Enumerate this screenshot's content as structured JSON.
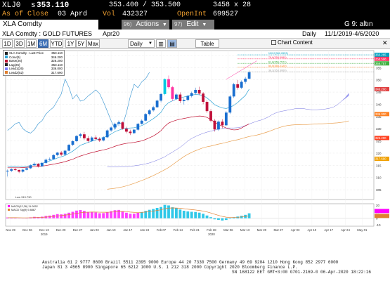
{
  "quote": {
    "ticker": "XLJ0",
    "price_prefix": "s",
    "price": "353.110",
    "bid_ask": "353.400 / 353.500",
    "size": "3458 x 28",
    "as_of_label": "As of Close",
    "date": "03 Aprd",
    "vol_label": "Vol",
    "vol": "432327",
    "openint_label": "OpenInt",
    "openint": "699527"
  },
  "menubar": {
    "security": "XLA Comdty",
    "actions_num": "96)",
    "actions_label": "Actions",
    "edit_num": "97)",
    "edit_label": "Edit",
    "page_indicator": "G 9: altın"
  },
  "window": {
    "title": "XLA Comdty : GOLD FUTURES",
    "contract": "Apr20",
    "frequency": "Daily",
    "date_range": "11/1/2019-4/6/2020"
  },
  "toolbar": {
    "periods": [
      "1D",
      "3D",
      "1M",
      "6M",
      "YTD",
      "1Y",
      "5Y",
      "Max"
    ],
    "selected_period": "6M",
    "frequency": "Daily",
    "table_label": "Table",
    "chart_content_label": "Chart Content"
  },
  "legend": [
    {
      "label": "XLA Comdty - Last Price",
      "value": "353.110",
      "color": "#222222"
    },
    {
      "label": "Conv(9)",
      "value": "346.200",
      "color": "#2fa4d6"
    },
    {
      "label": "Base(26)",
      "value": "326.200",
      "color": "#c01030"
    },
    {
      "label": "Lag(26)",
      "value": "353.110",
      "color": "#222222"
    },
    {
      "label": "Lead1(26)",
      "value": "336.000",
      "color": "#8080ff"
    },
    {
      "label": "Lead2(52)",
      "value": "317.690",
      "color": "#e08030"
    }
  ],
  "fib_labels": [
    "100.0(360.2653)",
    "78.6(358.5980)",
    "61.8(356.7571)",
    "50.0(355.2120)",
    "38.2(353.3060)"
  ],
  "price_labels": [
    {
      "value": "360.265",
      "color": "#00a0c0"
    },
    {
      "value": "358.598",
      "color": "#ff3060"
    },
    {
      "value": "356.757",
      "color": "#40b040"
    },
    {
      "value": "346.200",
      "color": "#e04040"
    },
    {
      "value": "336.000",
      "color": "#ff8020"
    },
    {
      "value": "326.200",
      "color": "#ff4020"
    },
    {
      "value": "317.690",
      "color": "#f0a000"
    }
  ],
  "low_label": "Low 313.730",
  "macd_legend": [
    {
      "label": "MACD(12,26) 11.0052",
      "color": "#ff00ff"
    },
    {
      "label": "MACD Sig(9) 9.8867",
      "color": "#e08030"
    }
  ],
  "chart_data": {
    "type": "candlestick",
    "y_ticks": [
      "360",
      "355",
      "350",
      "345",
      "340",
      "335",
      "330",
      "325",
      "320",
      "315",
      "310",
      "305"
    ],
    "x_labels": [
      "Nov 29",
      "Dec 06",
      "Dec 13",
      "Dec 20",
      "Dec 27",
      "Jan 03",
      "Jan 10",
      "Jan 17",
      "Jan 24",
      "Feb 07",
      "Feb 14",
      "Feb 21",
      "Feb 28",
      "Mar 06",
      "Mar 13",
      "Mar 20",
      "Mar 27",
      "Apr 03",
      "Apr 10",
      "Apr 17",
      "Apr 24",
      "May 01"
    ],
    "year_labels": [
      "2019",
      "2020"
    ],
    "macd_ticks": [
      "20",
      "10",
      "0",
      "-10"
    ],
    "candles": [
      [
        312.5,
        313.3,
        310.4,
        312.8
      ],
      [
        312.8,
        313.8,
        312.2,
        313.4
      ],
      [
        313.4,
        314.0,
        312.7,
        313.1
      ],
      [
        313.1,
        313.3,
        311.8,
        312.4
      ],
      [
        312.4,
        313.6,
        312.0,
        313.2
      ],
      [
        313.2,
        314.2,
        312.9,
        313.8
      ],
      [
        313.8,
        315.4,
        313.5,
        315.0
      ],
      [
        315.0,
        316.2,
        314.8,
        315.6
      ],
      [
        315.6,
        315.9,
        314.1,
        314.6
      ],
      [
        314.6,
        316.4,
        314.3,
        316.0
      ],
      [
        316.0,
        317.8,
        315.6,
        317.3
      ],
      [
        317.3,
        318.2,
        316.9,
        317.6
      ],
      [
        317.6,
        319.6,
        317.3,
        319.2
      ],
      [
        319.2,
        320.5,
        318.7,
        320.2
      ],
      [
        320.2,
        320.9,
        318.8,
        319.4
      ],
      [
        319.4,
        321.3,
        319.0,
        321.0
      ],
      [
        321.0,
        323.8,
        320.7,
        323.4
      ],
      [
        323.4,
        325.3,
        322.9,
        324.9
      ],
      [
        324.9,
        327.4,
        324.5,
        327.0
      ],
      [
        327.0,
        328.3,
        326.2,
        327.7
      ],
      [
        327.7,
        328.7,
        325.4,
        326.1
      ],
      [
        326.1,
        327.0,
        324.4,
        325.0
      ],
      [
        325.0,
        326.9,
        324.7,
        326.4
      ],
      [
        326.4,
        327.3,
        325.3,
        325.8
      ],
      [
        325.8,
        326.5,
        324.6,
        325.2
      ],
      [
        325.2,
        326.9,
        324.8,
        326.5
      ],
      [
        326.5,
        329.7,
        326.2,
        329.3
      ],
      [
        329.3,
        331.0,
        328.7,
        330.5
      ],
      [
        330.5,
        332.5,
        329.9,
        332.0
      ],
      [
        332.0,
        333.4,
        331.1,
        332.6
      ],
      [
        332.6,
        333.0,
        329.6,
        330.0
      ],
      [
        330.0,
        330.8,
        328.1,
        328.8
      ],
      [
        328.8,
        329.6,
        327.4,
        328.2
      ],
      [
        328.2,
        330.0,
        327.8,
        329.6
      ],
      [
        329.6,
        332.4,
        329.2,
        332.0
      ],
      [
        332.0,
        333.8,
        331.7,
        333.3
      ],
      [
        333.3,
        336.4,
        333.0,
        336.0
      ],
      [
        336.0,
        338.0,
        335.4,
        337.5
      ],
      [
        337.5,
        339.4,
        337.0,
        338.8
      ],
      [
        338.8,
        341.9,
        338.5,
        341.5
      ],
      [
        341.5,
        344.6,
        340.8,
        344.2
      ],
      [
        344.2,
        350.6,
        343.7,
        350.3
      ],
      [
        350.3,
        351.8,
        346.3,
        347.0
      ],
      [
        347.0,
        347.6,
        341.4,
        342.2
      ],
      [
        342.2,
        344.6,
        341.8,
        344.0
      ],
      [
        344.0,
        344.9,
        340.5,
        341.3
      ],
      [
        341.3,
        342.4,
        339.9,
        341.8
      ],
      [
        341.8,
        343.9,
        341.2,
        343.4
      ],
      [
        343.4,
        345.2,
        342.8,
        344.6
      ],
      [
        344.6,
        346.8,
        344.1,
        345.9
      ],
      [
        345.9,
        347.2,
        343.8,
        344.4
      ],
      [
        344.4,
        345.0,
        340.0,
        341.0
      ],
      [
        341.0,
        341.6,
        336.5,
        337.2
      ],
      [
        337.2,
        338.0,
        332.6,
        333.3
      ],
      [
        333.3,
        334.0,
        328.8,
        329.7
      ],
      [
        329.7,
        333.4,
        329.1,
        332.9
      ],
      [
        332.9,
        333.9,
        330.2,
        331.4
      ],
      [
        331.4,
        337.2,
        331.0,
        336.6
      ],
      [
        336.6,
        343.9,
        336.0,
        343.2
      ],
      [
        343.2,
        348.8,
        342.6,
        348.2
      ],
      [
        348.2,
        350.0,
        346.0,
        346.8
      ],
      [
        346.8,
        349.8,
        346.2,
        349.2
      ],
      [
        349.2,
        351.2,
        348.4,
        350.5
      ],
      [
        350.5,
        353.8,
        350.2,
        353.1
      ]
    ],
    "conversion": [
      314.5,
      314.6,
      314.6,
      314.5,
      314.5,
      314.6,
      314.9,
      315.4,
      315.5,
      315.8,
      316.3,
      316.8,
      317.4,
      318.0,
      318.5,
      319.0,
      319.9,
      320.8,
      322.0,
      323.2,
      323.8,
      324.4,
      324.9,
      325.4,
      325.9,
      326.4,
      327.0,
      327.8,
      328.8,
      329.4,
      329.9,
      330.2,
      330.3,
      330.4,
      330.8,
      331.3,
      332.1,
      333.1,
      334.1,
      335.3,
      336.7,
      339.2,
      340.7,
      341.4,
      342.1,
      342.6,
      343.0,
      343.4,
      343.8,
      344.0,
      343.9,
      343.6,
      342.6,
      341.3,
      339.8,
      339.1,
      338.5,
      338.3,
      338.7,
      339.6,
      340.7,
      342.2,
      343.6,
      346.2
    ],
    "base": [
      314.0,
      314.0,
      314.0,
      314.0,
      314.1,
      314.2,
      314.3,
      314.4,
      314.5,
      314.7,
      314.9,
      315.2,
      315.5,
      315.8,
      316.1,
      316.5,
      317.0,
      317.5,
      318.2,
      318.8,
      319.3,
      319.8,
      320.2,
      320.6,
      321.0,
      321.3,
      321.7,
      322.2,
      322.8,
      323.3,
      323.7,
      324.0,
      324.2,
      324.4,
      324.7,
      325.0,
      325.6,
      326.3,
      327.0,
      328.0,
      329.2,
      331.0,
      332.3,
      333.0,
      333.5,
      333.9,
      334.2,
      334.5,
      334.8,
      335.0,
      335.2,
      335.1,
      334.6,
      333.8,
      332.6,
      331.8,
      331.0,
      330.3,
      329.8,
      329.5,
      329.6,
      330.3,
      331.2,
      332.0
    ],
    "lagging_start": 0,
    "lead1_start": 26,
    "lead1": [
      314.3,
      314.3,
      314.3,
      314.3,
      314.4,
      314.5,
      314.6,
      314.8,
      315.0,
      315.3,
      315.6,
      316.0,
      316.5,
      317.1,
      317.8,
      318.5,
      319.5,
      320.4,
      321.4,
      322.4,
      323.6,
      325.0,
      326.0,
      326.8,
      327.5,
      328.1,
      328.6,
      329.0,
      329.4,
      329.8,
      330.1,
      330.3,
      330.3,
      330.3,
      330.4,
      330.7,
      331.3,
      331.9,
      332.5,
      333.1,
      333.5,
      334.1,
      334.8,
      335.8,
      336.5,
      337.0,
      337.3,
      337.6,
      337.9,
      338.2,
      338.3,
      338.3,
      338.0,
      337.8,
      337.7,
      337.8,
      337.9,
      338.1,
      338.4,
      338.9,
      339.8,
      341.2,
      342.6,
      344.5
    ],
    "lead2_start": 26,
    "lead2": [
      305.2,
      305.4,
      305.6,
      305.9,
      306.2,
      306.6,
      307.1,
      307.6,
      308.2,
      308.8,
      309.4,
      310.1,
      310.8,
      311.6,
      312.4,
      313.2,
      314.1,
      315.2,
      316.4,
      317.5,
      318.6,
      319.5,
      320.3,
      321.0,
      321.6,
      322.2,
      322.6,
      322.9,
      323.3,
      323.7,
      324.0,
      324.4,
      324.8,
      325.2,
      325.5,
      325.9,
      326.4,
      326.8,
      327.1,
      327.4,
      327.8,
      328.3,
      328.8,
      329.4,
      330.0,
      330.5,
      331.0,
      331.3,
      331.5,
      331.6,
      331.6,
      331.7,
      331.7,
      331.8,
      331.9,
      332.0,
      332.0,
      332.1,
      332.2,
      332.3,
      332.4,
      332.6,
      332.8,
      333.2
    ],
    "macd_hist": [
      1.2,
      1.1,
      0.8,
      0.4,
      0.2,
      0.6,
      1.4,
      2.1,
      1.8,
      2.4,
      3.5,
      4.1,
      5.2,
      6.3,
      5.9,
      6.8,
      8.4,
      9.8,
      11.6,
      12.4,
      11.2,
      9.6,
      9.9,
      8.9,
      7.6,
      7.8,
      9.3,
      10.8,
      12.2,
      12.6,
      10.6,
      8.4,
      6.8,
      6.9,
      8.2,
      9.4,
      11.2,
      12.8,
      14.0,
      15.6,
      17.0,
      20.2,
      19.4,
      16.6,
      15.2,
      13.2,
      11.4,
      10.4,
      9.8,
      9.5,
      8.5,
      6.8,
      4.2,
      1.6,
      -1.6,
      -2.4,
      -3.4,
      -2.6,
      -0.8,
      1.4,
      2.6,
      3.8,
      5.2,
      7.5
    ],
    "macd_signal": [
      0.8,
      0.9,
      0.9,
      0.8,
      0.7,
      0.7,
      0.8,
      1.0,
      1.2,
      1.4,
      1.8,
      2.3,
      2.9,
      3.6,
      4.1,
      4.7,
      5.5,
      6.4,
      7.4,
      8.4,
      9.0,
      9.2,
      9.4,
      9.4,
      9.2,
      9.1,
      9.1,
      9.3,
      9.7,
      10.2,
      10.3,
      10.0,
      9.4,
      9.0,
      8.9,
      9.0,
      9.4,
      10.1,
      10.9,
      11.8,
      12.9,
      14.4,
      15.4,
      15.6,
      15.5,
      15.1,
      14.5,
      13.8,
      13.1,
      12.5,
      11.8,
      10.9,
      9.6,
      8.0,
      6.1,
      4.4,
      2.8,
      1.7,
      1.2,
      1.2,
      1.5,
      2.0,
      2.7,
      3.6
    ],
    "fibonacci": {
      "levels": [
        360.265,
        358.598,
        356.757,
        355.212,
        353.306
      ]
    },
    "ylim": [
      301,
      362
    ],
    "macd_ylim": [
      -12,
      22
    ]
  }
}
